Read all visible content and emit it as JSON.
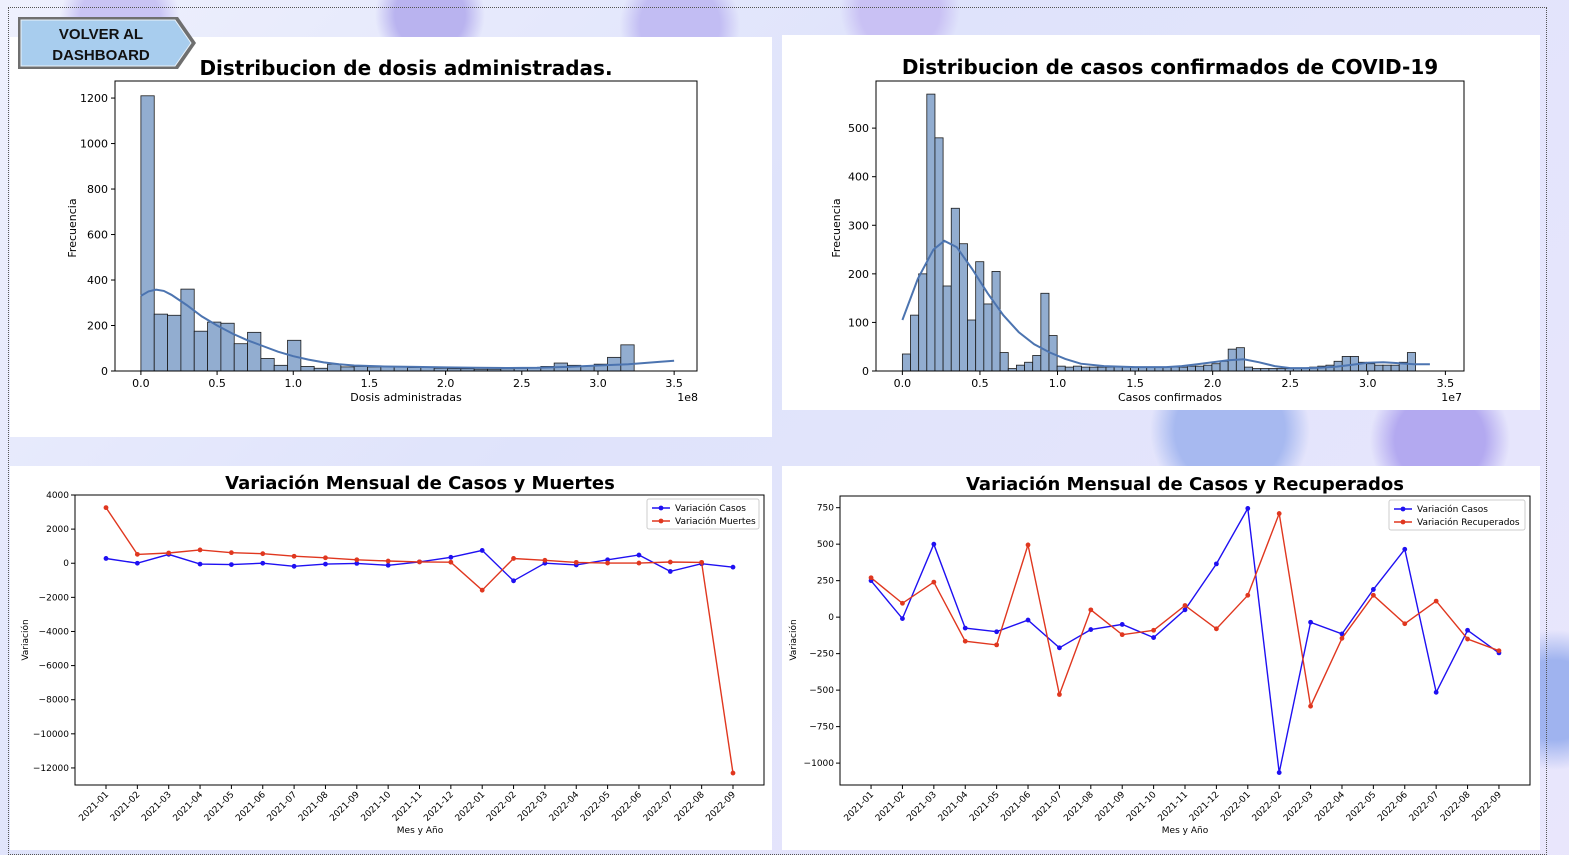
{
  "back_button": {
    "label_line1": "VOLVER AL",
    "label_line2": "DASHBOARD"
  },
  "colors": {
    "hist_fill": "#92add0",
    "kde_line": "#4c74b0",
    "casos": "#1f10f2",
    "muertes": "#e0371f",
    "recuperados": "#e0371f"
  },
  "chart_data": [
    {
      "type": "bar",
      "title": "Distribucion de dosis administradas.",
      "xlabel": "Dosis administradas",
      "ylabel": "Frecuencia",
      "offset_label": "1e8",
      "xlim": [
        -0.17,
        3.65
      ],
      "ylim": [
        0,
        1275
      ],
      "xticks": [
        0.0,
        0.5,
        1.0,
        1.5,
        2.0,
        2.5,
        3.0,
        3.5
      ],
      "xtick_labels": [
        "0.0",
        "0.5",
        "1.0",
        "1.5",
        "2.0",
        "2.5",
        "3.0",
        "3.5"
      ],
      "yticks": [
        0,
        200,
        400,
        600,
        800,
        1000,
        1200
      ],
      "ytick_labels": [
        "0",
        "200",
        "400",
        "600",
        "800",
        "1000",
        "1200"
      ],
      "bin_start": 0.0,
      "bin_width": 0.0875,
      "values": [
        1210,
        250,
        245,
        360,
        175,
        215,
        210,
        120,
        170,
        55,
        25,
        135,
        20,
        12,
        30,
        18,
        20,
        18,
        20,
        20,
        15,
        18,
        12,
        10,
        10,
        8,
        8,
        10,
        12,
        15,
        20,
        35,
        25,
        22,
        30,
        60,
        115
      ],
      "kde": [
        [
          0.0,
          330
        ],
        [
          0.05,
          350
        ],
        [
          0.1,
          358
        ],
        [
          0.15,
          352
        ],
        [
          0.2,
          335
        ],
        [
          0.3,
          290
        ],
        [
          0.4,
          240
        ],
        [
          0.5,
          200
        ],
        [
          0.6,
          165
        ],
        [
          0.7,
          135
        ],
        [
          0.8,
          110
        ],
        [
          0.9,
          85
        ],
        [
          1.0,
          65
        ],
        [
          1.1,
          50
        ],
        [
          1.2,
          38
        ],
        [
          1.3,
          30
        ],
        [
          1.4,
          24
        ],
        [
          1.6,
          20
        ],
        [
          1.8,
          18
        ],
        [
          2.0,
          16
        ],
        [
          2.2,
          14
        ],
        [
          2.4,
          13
        ],
        [
          2.6,
          14
        ],
        [
          2.8,
          18
        ],
        [
          3.0,
          24
        ],
        [
          3.2,
          30
        ],
        [
          3.4,
          40
        ],
        [
          3.5,
          45
        ]
      ]
    },
    {
      "type": "bar",
      "title": "Distribucion de casos confirmados de COVID-19",
      "xlabel": "Casos confirmados",
      "ylabel": "Frecuencia",
      "offset_label": "1e7",
      "xlim": [
        -0.17,
        3.62
      ],
      "ylim": [
        0,
        597
      ],
      "xticks": [
        0.0,
        0.5,
        1.0,
        1.5,
        2.0,
        2.5,
        3.0,
        3.5
      ],
      "xtick_labels": [
        "0.0",
        "0.5",
        "1.0",
        "1.5",
        "2.0",
        "2.5",
        "3.0",
        "3.5"
      ],
      "yticks": [
        0,
        100,
        200,
        300,
        400,
        500
      ],
      "ytick_labels": [
        "0",
        "100",
        "200",
        "300",
        "400",
        "500"
      ],
      "bin_start": 0.0,
      "bin_width": 0.0525,
      "values": [
        35,
        115,
        200,
        570,
        480,
        175,
        335,
        262,
        105,
        225,
        138,
        205,
        38,
        5,
        12,
        18,
        32,
        160,
        73,
        10,
        8,
        10,
        8,
        8,
        8,
        8,
        8,
        8,
        8,
        8,
        8,
        8,
        8,
        8,
        8,
        10,
        10,
        12,
        15,
        20,
        45,
        48,
        8,
        5,
        5,
        5,
        5,
        5,
        5,
        5,
        8,
        10,
        12,
        20,
        30,
        30,
        18,
        15,
        12,
        12,
        12,
        18,
        38
      ],
      "kde": [
        [
          0.0,
          105
        ],
        [
          0.1,
          190
        ],
        [
          0.2,
          250
        ],
        [
          0.27,
          268
        ],
        [
          0.35,
          255
        ],
        [
          0.45,
          210
        ],
        [
          0.55,
          160
        ],
        [
          0.65,
          115
        ],
        [
          0.75,
          80
        ],
        [
          0.85,
          55
        ],
        [
          0.95,
          38
        ],
        [
          1.05,
          25
        ],
        [
          1.15,
          15
        ],
        [
          1.3,
          10
        ],
        [
          1.5,
          8
        ],
        [
          1.7,
          8
        ],
        [
          1.8,
          10
        ],
        [
          1.9,
          14
        ],
        [
          2.0,
          18
        ],
        [
          2.1,
          22
        ],
        [
          2.2,
          24
        ],
        [
          2.3,
          18
        ],
        [
          2.4,
          10
        ],
        [
          2.5,
          6
        ],
        [
          2.6,
          6
        ],
        [
          2.7,
          7
        ],
        [
          2.8,
          9
        ],
        [
          2.9,
          13
        ],
        [
          3.0,
          17
        ],
        [
          3.1,
          18
        ],
        [
          3.2,
          16
        ],
        [
          3.3,
          14
        ],
        [
          3.4,
          14
        ]
      ]
    },
    {
      "type": "line",
      "title": "Variación Mensual de Casos y Muertes",
      "xlabel": "Mes y Año",
      "ylabel": "Variación",
      "categories": [
        "2021-01",
        "2021-02",
        "2021-03",
        "2021-04",
        "2021-05",
        "2021-06",
        "2021-07",
        "2021-08",
        "2021-09",
        "2021-10",
        "2021-11",
        "2021-12",
        "2022-01",
        "2022-02",
        "2022-03",
        "2022-04",
        "2022-05",
        "2022-06",
        "2022-07",
        "2022-08",
        "2022-09"
      ],
      "ylim": [
        -13000,
        4000
      ],
      "yticks": [
        4000,
        2000,
        0,
        -2000,
        -4000,
        -6000,
        -8000,
        -10000,
        -12000
      ],
      "ytick_labels": [
        "4000",
        "2000",
        "0",
        "−2000",
        "−4000",
        "−6000",
        "−8000",
        "−10000",
        "−12000"
      ],
      "legend_position": "top-right",
      "series": [
        {
          "name": "Variación Casos",
          "color": "#1f10f2",
          "values": [
            280,
            0,
            520,
            -50,
            -80,
            0,
            -180,
            -50,
            -10,
            -120,
            80,
            350,
            750,
            -1030,
            0,
            -100,
            200,
            480,
            -480,
            -30,
            -230
          ]
        },
        {
          "name": "Variación Muertes",
          "color": "#e0371f",
          "values": [
            3260,
            520,
            600,
            780,
            620,
            560,
            410,
            320,
            200,
            130,
            80,
            60,
            -1580,
            280,
            170,
            50,
            10,
            10,
            70,
            50,
            -12300
          ]
        }
      ]
    },
    {
      "type": "line",
      "title": "Variación Mensual de Casos y Recuperados",
      "xlabel": "Mes y Año",
      "ylabel": "Variación",
      "categories": [
        "2021-01",
        "2021-02",
        "2021-03",
        "2021-04",
        "2021-05",
        "2021-06",
        "2021-07",
        "2021-08",
        "2021-09",
        "2021-10",
        "2021-11",
        "2021-12",
        "2022-01",
        "2022-02",
        "2022-03",
        "2022-04",
        "2022-05",
        "2022-06",
        "2022-07",
        "2022-08",
        "2022-09"
      ],
      "ylim": [
        -1150,
        830
      ],
      "yticks": [
        750,
        500,
        250,
        0,
        -250,
        -500,
        -750,
        -1000
      ],
      "ytick_labels": [
        "750",
        "500",
        "250",
        "0",
        "−250",
        "−500",
        "−750",
        "−1000"
      ],
      "legend_position": "top-right",
      "series": [
        {
          "name": "Variación Casos",
          "color": "#1f10f2",
          "values": [
            250,
            -10,
            500,
            -75,
            -100,
            -20,
            -210,
            -85,
            -50,
            -140,
            50,
            365,
            745,
            -1065,
            -35,
            -115,
            190,
            465,
            -515,
            -90,
            -245
          ]
        },
        {
          "name": "Variación Recuperados",
          "color": "#e0371f",
          "values": [
            270,
            95,
            240,
            -165,
            -190,
            495,
            -530,
            50,
            -120,
            -90,
            80,
            -80,
            150,
            710,
            -610,
            -145,
            150,
            -45,
            110,
            -150,
            -230
          ]
        }
      ]
    }
  ]
}
